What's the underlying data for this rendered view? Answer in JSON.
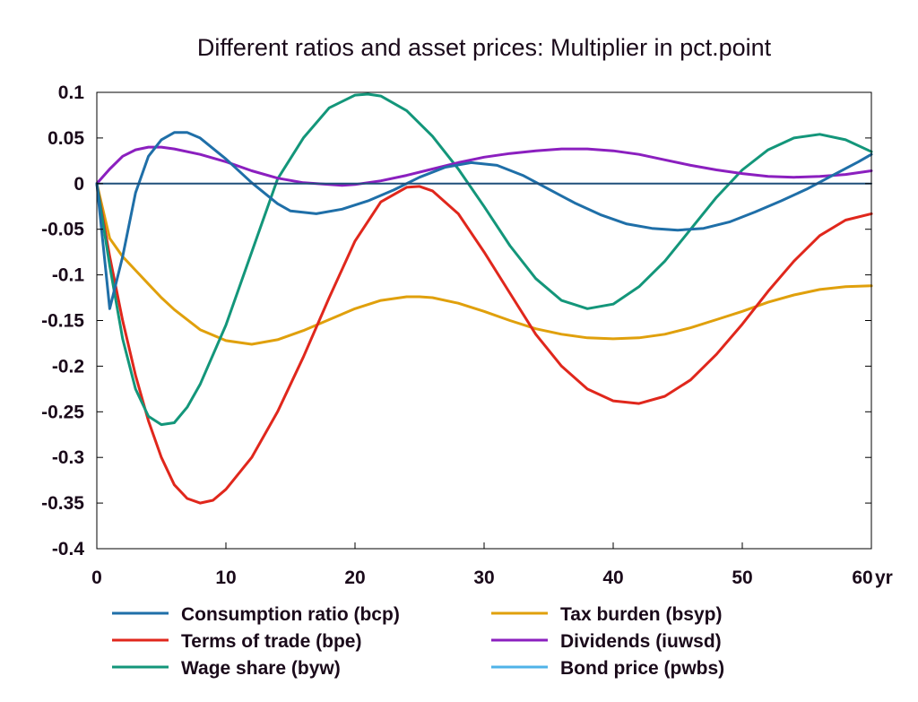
{
  "chart_data": {
    "type": "line",
    "title": "Different ratios and asset prices: Multiplier in pct.point",
    "xlabel": "",
    "ylabel": "",
    "x_unit_label": "yr",
    "xlim": [
      0,
      60
    ],
    "ylim": [
      -0.4,
      0.1
    ],
    "x_ticks": [
      0,
      10,
      20,
      30,
      40,
      50,
      60
    ],
    "x_tick_labels": [
      "0",
      "10",
      "20",
      "30",
      "40",
      "50",
      "60"
    ],
    "y_ticks": [
      0.1,
      0.05,
      0,
      -0.05,
      -0.1,
      -0.15,
      -0.2,
      -0.25,
      -0.3,
      -0.35,
      -0.4
    ],
    "y_tick_labels": [
      "0.1",
      "0.05",
      "0",
      "-0.05",
      "-0.1",
      "-0.15",
      "-0.2",
      "-0.25",
      "-0.3",
      "-0.35",
      "-0.4"
    ],
    "grid": false,
    "legend_position": "bottom",
    "series": [
      {
        "name": "Consumption ratio (bcp)",
        "color": "#1f6fa8",
        "x": [
          0,
          1,
          2,
          3,
          4,
          5,
          6,
          7,
          8,
          10,
          12,
          14,
          15,
          17,
          19,
          21,
          23,
          25,
          27,
          29,
          31,
          33,
          35,
          37,
          39,
          41,
          43,
          45,
          47,
          49,
          51,
          53,
          55,
          57,
          59,
          60
        ],
        "y": [
          0,
          -0.137,
          -0.08,
          -0.01,
          0.03,
          0.048,
          0.056,
          0.056,
          0.05,
          0.027,
          0.001,
          -0.022,
          -0.03,
          -0.033,
          -0.028,
          -0.019,
          -0.007,
          0.007,
          0.018,
          0.023,
          0.02,
          0.009,
          -0.006,
          -0.021,
          -0.034,
          -0.044,
          -0.049,
          -0.051,
          -0.049,
          -0.042,
          -0.031,
          -0.019,
          -0.006,
          0.009,
          0.024,
          0.032
        ]
      },
      {
        "name": "Terms of trade (bpe)",
        "color": "#e0271c",
        "x": [
          0,
          1,
          2,
          3,
          4,
          5,
          6,
          7,
          8,
          9,
          10,
          12,
          14,
          16,
          18,
          20,
          22,
          24,
          25,
          26,
          28,
          30,
          32,
          34,
          36,
          38,
          40,
          42,
          44,
          46,
          48,
          50,
          52,
          54,
          56,
          58,
          60
        ],
        "y": [
          0,
          -0.08,
          -0.15,
          -0.21,
          -0.26,
          -0.3,
          -0.33,
          -0.345,
          -0.35,
          -0.347,
          -0.335,
          -0.3,
          -0.25,
          -0.19,
          -0.125,
          -0.063,
          -0.02,
          -0.004,
          -0.003,
          -0.008,
          -0.033,
          -0.075,
          -0.12,
          -0.165,
          -0.2,
          -0.225,
          -0.238,
          -0.241,
          -0.233,
          -0.215,
          -0.187,
          -0.154,
          -0.118,
          -0.085,
          -0.057,
          -0.04,
          -0.033
        ]
      },
      {
        "name": "Wage share (byw)",
        "color": "#13967a",
        "x": [
          0,
          1,
          2,
          3,
          4,
          5,
          6,
          7,
          8,
          10,
          12,
          14,
          16,
          18,
          20,
          21,
          22,
          24,
          26,
          28,
          30,
          32,
          34,
          36,
          38,
          40,
          42,
          44,
          46,
          48,
          50,
          52,
          54,
          56,
          58,
          60
        ],
        "y": [
          0,
          -0.09,
          -0.17,
          -0.225,
          -0.255,
          -0.264,
          -0.262,
          -0.245,
          -0.22,
          -0.155,
          -0.075,
          0.005,
          0.05,
          0.083,
          0.097,
          0.098,
          0.096,
          0.08,
          0.052,
          0.016,
          -0.025,
          -0.068,
          -0.104,
          -0.128,
          -0.137,
          -0.132,
          -0.113,
          -0.085,
          -0.05,
          -0.015,
          0.015,
          0.037,
          0.05,
          0.054,
          0.048,
          0.035
        ]
      },
      {
        "name": "Tax burden (bsyp)",
        "color": "#e0a00c",
        "x": [
          0,
          1,
          2,
          3,
          4,
          5,
          6,
          8,
          10,
          12,
          14,
          16,
          18,
          20,
          22,
          24,
          25,
          26,
          28,
          30,
          32,
          34,
          36,
          38,
          40,
          42,
          44,
          46,
          48,
          50,
          52,
          54,
          56,
          58,
          60
        ],
        "y": [
          0,
          -0.06,
          -0.08,
          -0.095,
          -0.11,
          -0.125,
          -0.138,
          -0.16,
          -0.172,
          -0.176,
          -0.171,
          -0.161,
          -0.149,
          -0.137,
          -0.128,
          -0.124,
          -0.124,
          -0.125,
          -0.131,
          -0.14,
          -0.15,
          -0.159,
          -0.165,
          -0.169,
          -0.17,
          -0.169,
          -0.165,
          -0.158,
          -0.149,
          -0.14,
          -0.13,
          -0.122,
          -0.116,
          -0.113,
          -0.112
        ]
      },
      {
        "name": "Dividends (iuwsd)",
        "color": "#8b1fbf",
        "x": [
          0,
          1,
          2,
          3,
          4,
          5,
          6,
          8,
          10,
          12,
          14,
          16,
          18,
          19,
          20,
          22,
          24,
          26,
          28,
          30,
          32,
          34,
          36,
          38,
          40,
          42,
          44,
          46,
          48,
          50,
          52,
          54,
          56,
          58,
          60
        ],
        "y": [
          0,
          0.016,
          0.03,
          0.037,
          0.04,
          0.04,
          0.038,
          0.032,
          0.024,
          0.014,
          0.006,
          0.001,
          -0.001,
          -0.002,
          -0.001,
          0.003,
          0.009,
          0.016,
          0.023,
          0.029,
          0.033,
          0.036,
          0.038,
          0.038,
          0.036,
          0.032,
          0.026,
          0.02,
          0.015,
          0.011,
          0.008,
          0.007,
          0.008,
          0.01,
          0.014
        ]
      },
      {
        "name": "Bond price (pwbs)",
        "color": "#4fb3e8",
        "x": [
          0,
          60
        ],
        "y": [
          0,
          0
        ]
      }
    ]
  }
}
